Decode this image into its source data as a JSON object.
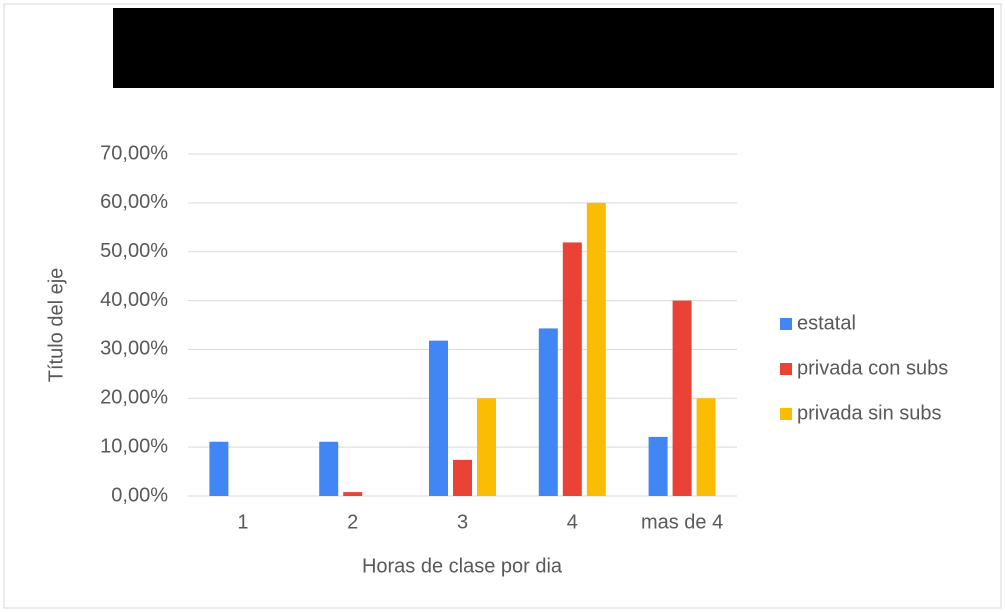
{
  "chart_data": {
    "type": "bar",
    "x_label": "Horas de clase por dia",
    "y_label": "Título del eje",
    "categories": [
      "1",
      "2",
      "3",
      "4",
      "mas de 4"
    ],
    "series": [
      {
        "name": "estatal",
        "color": "#4285f4",
        "values": [
          11.1,
          11.1,
          31.8,
          34.3,
          12.1
        ]
      },
      {
        "name": "privada con subs",
        "color": "#ea4335",
        "values": [
          0,
          0.8,
          7.4,
          51.9,
          40
        ]
      },
      {
        "name": "privada sin subs",
        "color": "#fbbc04",
        "values": [
          0,
          0,
          20,
          60,
          20
        ]
      }
    ],
    "ylim": [
      0,
      70
    ],
    "yticks": [
      {
        "value": 0,
        "label": "0,00%"
      },
      {
        "value": 10,
        "label": "10,00%"
      },
      {
        "value": 20,
        "label": "20,00%"
      },
      {
        "value": 30,
        "label": "30,00%"
      },
      {
        "value": 40,
        "label": "40,00%"
      },
      {
        "value": 50,
        "label": "50,00%"
      },
      {
        "value": 60,
        "label": "60,00%"
      },
      {
        "value": 70,
        "label": "70,00%"
      }
    ],
    "grid": true,
    "legend": "right"
  }
}
